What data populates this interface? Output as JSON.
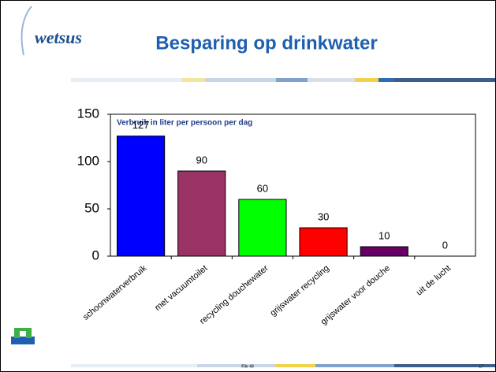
{
  "logo": "wetsus",
  "slide_title": "Besparing op drinkwater",
  "footer": {
    "file": "File 43",
    "page": "17"
  },
  "chart_data": {
    "type": "bar",
    "title": "Verbruik in liter per persoon per dag",
    "categories": [
      "schoonwaterverbruik",
      "met vacuumtoilet",
      "recycling douchewater",
      "grijswater recycling",
      "grijswater voor douche",
      "uit de lucht"
    ],
    "values": [
      127,
      90,
      60,
      30,
      10,
      0
    ],
    "colors": [
      "#0000ff",
      "#993366",
      "#00ff00",
      "#ff0000",
      "#660066",
      "#ffffff"
    ],
    "ylim": [
      0,
      150
    ],
    "yticks": [
      0,
      50,
      100,
      150
    ],
    "grid": false
  }
}
